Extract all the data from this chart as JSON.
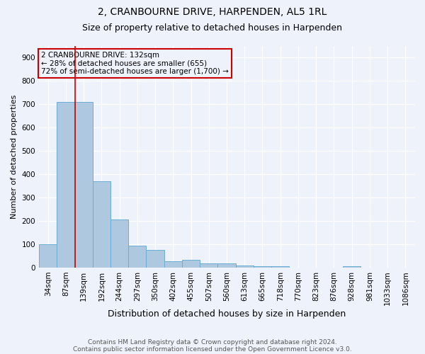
{
  "title": "2, CRANBOURNE DRIVE, HARPENDEN, AL5 1RL",
  "subtitle": "Size of property relative to detached houses in Harpenden",
  "xlabel": "Distribution of detached houses by size in Harpenden",
  "ylabel": "Number of detached properties",
  "categories": [
    "34sqm",
    "87sqm",
    "139sqm",
    "192sqm",
    "244sqm",
    "297sqm",
    "350sqm",
    "402sqm",
    "455sqm",
    "507sqm",
    "560sqm",
    "613sqm",
    "665sqm",
    "718sqm",
    "770sqm",
    "823sqm",
    "876sqm",
    "928sqm",
    "981sqm",
    "1033sqm",
    "1086sqm"
  ],
  "values": [
    100,
    710,
    710,
    370,
    205,
    95,
    75,
    28,
    32,
    18,
    18,
    10,
    6,
    6,
    0,
    0,
    0,
    7,
    0,
    0,
    0
  ],
  "bar_color": "#aec8e0",
  "bar_edge_color": "#6aadd5",
  "background_color": "#eef2fa",
  "grid_color": "#ffffff",
  "annotation_box_color": "#cc0000",
  "annotation_line1": "2 CRANBOURNE DRIVE: 132sqm",
  "annotation_line2": "← 28% of detached houses are smaller (655)",
  "annotation_line3": "72% of semi-detached houses are larger (1,700) →",
  "property_line_color": "#cc0000",
  "property_line_x": 1.5,
  "ylim": [
    0,
    950
  ],
  "yticks": [
    0,
    100,
    200,
    300,
    400,
    500,
    600,
    700,
    800,
    900
  ],
  "footnote_line1": "Contains HM Land Registry data © Crown copyright and database right 2024.",
  "footnote_line2": "Contains public sector information licensed under the Open Government Licence v3.0.",
  "title_fontsize": 10,
  "subtitle_fontsize": 9,
  "xlabel_fontsize": 9,
  "ylabel_fontsize": 8,
  "tick_fontsize": 7.5,
  "annotation_fontsize": 7.5,
  "footnote_fontsize": 6.5
}
